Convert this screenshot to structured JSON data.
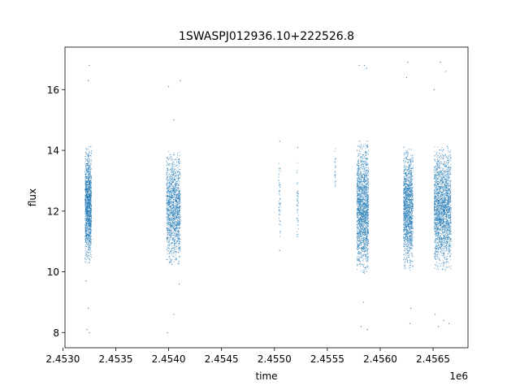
{
  "chart_data": {
    "type": "scatter",
    "title": "1SWASPJ012936.10+222526.8",
    "xlabel": "time",
    "ylabel": "flux",
    "x_offset_label": "1e6",
    "xlim": [
      2.45302,
      2.45683
    ],
    "ylim": [
      7.5,
      17.4
    ],
    "x_ticks": [
      2.453,
      2.4535,
      2.454,
      2.4545,
      2.455,
      2.4555,
      2.456,
      2.4565
    ],
    "x_tick_labels": [
      "2.4530",
      "2.4535",
      "2.4540",
      "2.4545",
      "2.4550",
      "2.4555",
      "2.4560",
      "2.4565"
    ],
    "y_ticks": [
      8,
      10,
      12,
      14,
      16
    ],
    "y_tick_labels": [
      "8",
      "10",
      "12",
      "14",
      "16"
    ],
    "grid": false,
    "marker_color": "#1f77b4",
    "clusters": [
      {
        "x_start": 2.45321,
        "x_end": 2.45327,
        "y_mean": 12.2,
        "y_spread": 1.15,
        "count": 1400
      },
      {
        "x_start": 2.45398,
        "x_end": 2.45411,
        "y_mean": 12.1,
        "y_spread": 1.1,
        "count": 1500
      },
      {
        "x_start": 2.45504,
        "x_end": 2.45506,
        "y_mean": 12.5,
        "y_spread": 0.8,
        "count": 60
      },
      {
        "x_start": 2.45521,
        "x_end": 2.45523,
        "y_mean": 12.3,
        "y_spread": 0.9,
        "count": 50
      },
      {
        "x_start": 2.45557,
        "x_end": 2.45558,
        "y_mean": 13.3,
        "y_spread": 0.5,
        "count": 30
      },
      {
        "x_start": 2.45578,
        "x_end": 2.45589,
        "y_mean": 12.1,
        "y_spread": 1.3,
        "count": 1800
      },
      {
        "x_start": 2.45622,
        "x_end": 2.45631,
        "y_mean": 12.1,
        "y_spread": 1.2,
        "count": 1500
      },
      {
        "x_start": 2.45651,
        "x_end": 2.45667,
        "y_mean": 12.1,
        "y_spread": 1.2,
        "count": 2200
      }
    ],
    "outliers": [
      {
        "x": 2.45325,
        "y": 16.8
      },
      {
        "x": 2.45324,
        "y": 16.3
      },
      {
        "x": 2.45323,
        "y": 8.1
      },
      {
        "x": 2.45324,
        "y": 8.8
      },
      {
        "x": 2.45325,
        "y": 8.0
      },
      {
        "x": 2.45322,
        "y": 9.7
      },
      {
        "x": 2.454,
        "y": 16.1
      },
      {
        "x": 2.45411,
        "y": 16.3
      },
      {
        "x": 2.45399,
        "y": 8.0
      },
      {
        "x": 2.45405,
        "y": 8.6
      },
      {
        "x": 2.4541,
        "y": 9.6
      },
      {
        "x": 2.45405,
        "y": 15.0
      },
      {
        "x": 2.45505,
        "y": 14.3
      },
      {
        "x": 2.45505,
        "y": 10.7
      },
      {
        "x": 2.45522,
        "y": 14.1
      },
      {
        "x": 2.4558,
        "y": 16.8
      },
      {
        "x": 2.45585,
        "y": 16.8
      },
      {
        "x": 2.45587,
        "y": 16.7
      },
      {
        "x": 2.45582,
        "y": 8.2
      },
      {
        "x": 2.45588,
        "y": 8.1
      },
      {
        "x": 2.45584,
        "y": 9.0
      },
      {
        "x": 2.45626,
        "y": 16.9
      },
      {
        "x": 2.45625,
        "y": 16.4
      },
      {
        "x": 2.45628,
        "y": 8.3
      },
      {
        "x": 2.45629,
        "y": 8.8
      },
      {
        "x": 2.45651,
        "y": 16.0
      },
      {
        "x": 2.45657,
        "y": 16.9
      },
      {
        "x": 2.45662,
        "y": 16.6
      },
      {
        "x": 2.45655,
        "y": 8.2
      },
      {
        "x": 2.45665,
        "y": 8.3
      },
      {
        "x": 2.45652,
        "y": 8.6
      },
      {
        "x": 2.4566,
        "y": 8.4
      }
    ]
  }
}
